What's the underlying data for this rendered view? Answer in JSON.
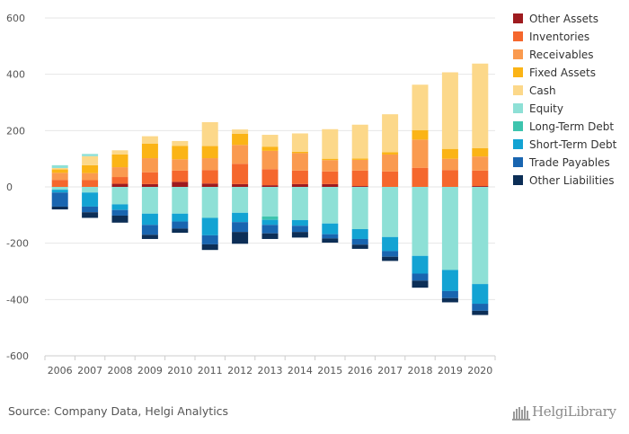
{
  "chart_data": {
    "type": "bar",
    "stacked": true,
    "categories": [
      "2006",
      "2007",
      "2008",
      "2009",
      "2010",
      "2011",
      "2012",
      "2013",
      "2014",
      "2015",
      "2016",
      "2017",
      "2018",
      "2019",
      "2020"
    ],
    "ylim": [
      -600,
      600
    ],
    "yticks": [
      -600,
      -400,
      -200,
      0,
      200,
      400,
      600
    ],
    "grid": true,
    "legend_position": "right",
    "positive_series": [
      {
        "name": "Other Assets",
        "color": "#9e1b1f",
        "values": [
          0,
          0,
          11,
          10,
          18,
          12,
          10,
          6,
          10,
          10,
          3,
          0,
          0,
          0,
          3
        ]
      },
      {
        "name": "Inventories",
        "color": "#f5672d",
        "values": [
          25,
          24,
          24,
          42,
          40,
          48,
          72,
          57,
          48,
          45,
          55,
          55,
          68,
          60,
          55
        ]
      },
      {
        "name": "Receivables",
        "color": "#fa9a4f",
        "values": [
          25,
          25,
          35,
          50,
          40,
          42,
          67,
          65,
          62,
          40,
          38,
          60,
          100,
          40,
          50
        ]
      },
      {
        "name": "Fixed Assets",
        "color": "#fbb416",
        "values": [
          12,
          28,
          45,
          52,
          48,
          43,
          40,
          15,
          5,
          5,
          5,
          8,
          33,
          35,
          30
        ]
      },
      {
        "name": "Cash",
        "color": "#fcd88a",
        "values": [
          5,
          32,
          15,
          26,
          17,
          85,
          15,
          42,
          65,
          105,
          120,
          135,
          162,
          272,
          300
        ]
      },
      {
        "name": "Equity",
        "color": "#8ee0d6",
        "values": [
          10,
          8,
          0,
          0,
          0,
          0,
          0,
          0,
          0,
          0,
          0,
          0,
          0,
          0,
          0
        ]
      }
    ],
    "negative_series": [
      {
        "name": "Equity",
        "color": "#8ee0d6",
        "values": [
          -10,
          -20,
          -62,
          -95,
          -95,
          -110,
          -92,
          -105,
          -118,
          -130,
          -150,
          -178,
          -245,
          -295,
          -345
        ]
      },
      {
        "name": "Long-Term Debt",
        "color": "#3dc4ae",
        "values": [
          0,
          0,
          0,
          0,
          0,
          0,
          0,
          -12,
          0,
          0,
          0,
          0,
          0,
          0,
          0
        ]
      },
      {
        "name": "Short-Term Debt",
        "color": "#13a3d3",
        "values": [
          -10,
          -50,
          -20,
          -40,
          -28,
          -62,
          -33,
          -18,
          -20,
          -38,
          -35,
          -50,
          -63,
          -75,
          -70
        ]
      },
      {
        "name": "Trade Payables",
        "color": "#1965b0",
        "values": [
          -50,
          -20,
          -20,
          -35,
          -25,
          -32,
          -35,
          -30,
          -22,
          -15,
          -20,
          -20,
          -25,
          -25,
          -25
        ]
      },
      {
        "name": "Other Liabilities",
        "color": "#0c2e56",
        "values": [
          -10,
          -20,
          -25,
          -15,
          -15,
          -20,
          -42,
          -20,
          -20,
          -15,
          -15,
          -15,
          -25,
          -15,
          -15
        ]
      }
    ],
    "legend": [
      {
        "name": "Other Assets",
        "color": "#9e1b1f"
      },
      {
        "name": "Inventories",
        "color": "#f5672d"
      },
      {
        "name": "Receivables",
        "color": "#fa9a4f"
      },
      {
        "name": "Fixed Assets",
        "color": "#fbb416"
      },
      {
        "name": "Cash",
        "color": "#fcd88a"
      },
      {
        "name": "Equity",
        "color": "#8ee0d6"
      },
      {
        "name": "Long-Term Debt",
        "color": "#3dc4ae"
      },
      {
        "name": "Short-Term Debt",
        "color": "#13a3d3"
      },
      {
        "name": "Trade Payables",
        "color": "#1965b0"
      },
      {
        "name": "Other Liabilities",
        "color": "#0c2e56"
      }
    ]
  },
  "footer": {
    "source": "Source: Company Data, Helgi Analytics",
    "brand": "HelgiLibrary",
    "brand_icon": "helgi-library-logo-icon"
  }
}
